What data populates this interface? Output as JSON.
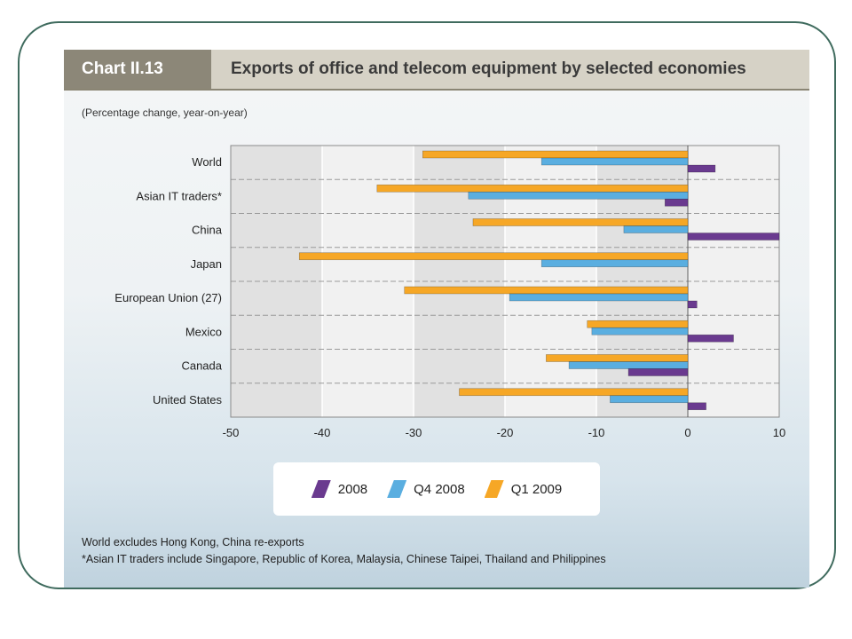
{
  "header": {
    "chart_label": "Chart II.13",
    "title": "Exports of office and telecom equipment by selected economies"
  },
  "subtitle": "(Percentage change, year-on-year)",
  "footnotes": {
    "line1": "World excludes Hong Kong, China re-exports",
    "line2": "*Asian IT traders include Singapore, Republic of Korea, Malaysia, Chinese Taipei, Thailand and Philippines"
  },
  "colors": {
    "s2008": "#6a3a8f",
    "q4_2008": "#5aaee0",
    "q1_2009": "#f6a726"
  },
  "chart_data": {
    "type": "bar",
    "orientation": "horizontal",
    "categories": [
      "World",
      "Asian IT traders*",
      "China",
      "Japan",
      "European Union (27)",
      "Mexico",
      "Canada",
      "United States"
    ],
    "series": [
      {
        "name": "Q1 2009",
        "values": [
          -29,
          -34,
          -23.5,
          -42.5,
          -31,
          -11,
          -15.5,
          -25
        ]
      },
      {
        "name": "Q4 2008",
        "values": [
          -16,
          -24,
          -7,
          -16,
          -19.5,
          -10.5,
          -13,
          -8.5
        ]
      },
      {
        "name": "2008",
        "values": [
          3,
          -2.5,
          10,
          0,
          1,
          5,
          -6.5,
          2
        ]
      }
    ],
    "xlim": [
      -50,
      10
    ],
    "xticks": [
      "-50",
      "-40",
      "-30",
      "-20",
      "-10",
      "0",
      "10"
    ],
    "legend": [
      "2008",
      "Q4 2008",
      "Q1 2009"
    ],
    "legend_position": "bottom",
    "grid": true
  }
}
